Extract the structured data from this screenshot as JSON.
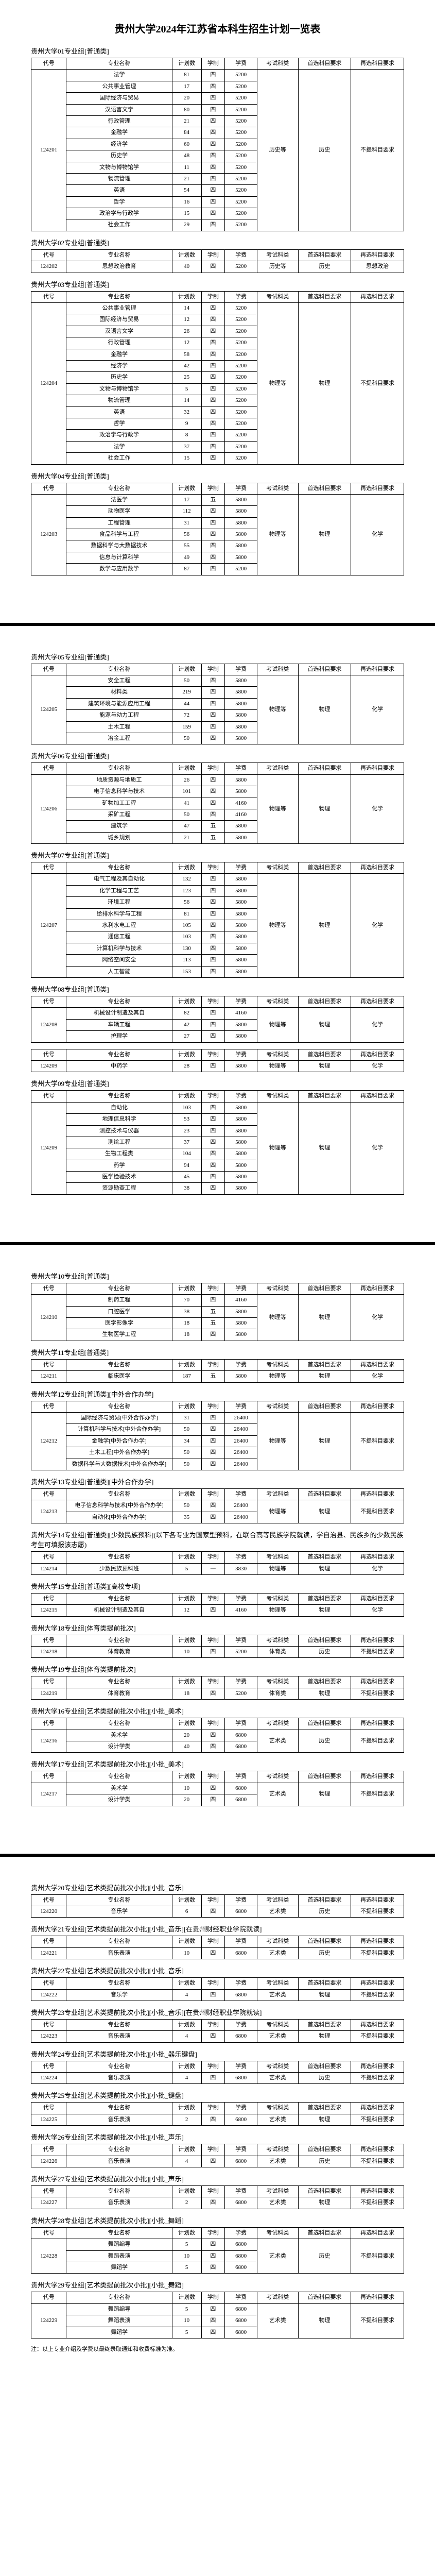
{
  "title": "贵州大学2024年江苏省本科生招生计划一览表",
  "th": {
    "code": "代号",
    "name": "专业名称",
    "plan": "计划数",
    "year": "学制",
    "fee": "学费",
    "cat": "考试科类",
    "req1": "首选科目要求",
    "req2": "再选科目要求"
  },
  "groups": [
    {
      "header": "贵州大学01专业组[普通类]",
      "codeRowspan": 14,
      "code": "124201",
      "noteCol": "",
      "rows": [
        {
          "name": "法学",
          "plan": "81",
          "year": "四",
          "fee": "5200"
        },
        {
          "name": "公共事业管理",
          "plan": "17",
          "year": "四",
          "fee": "5200"
        },
        {
          "name": "国际经济与贸易",
          "plan": "20",
          "year": "四",
          "fee": "5200"
        },
        {
          "name": "汉语言文学",
          "plan": "80",
          "year": "四",
          "fee": "5200"
        },
        {
          "name": "行政管理",
          "plan": "21",
          "year": "四",
          "fee": "5200"
        },
        {
          "name": "金融学",
          "plan": "84",
          "year": "四",
          "fee": "5200"
        },
        {
          "name": "经济学",
          "plan": "60",
          "year": "四",
          "fee": "5200"
        },
        {
          "name": "历史学",
          "plan": "48",
          "year": "四",
          "fee": "5200"
        },
        {
          "name": "文物与博物馆学",
          "plan": "11",
          "year": "四",
          "fee": "5200"
        },
        {
          "name": "物流管理",
          "plan": "21",
          "year": "四",
          "fee": "5200"
        },
        {
          "name": "英语",
          "plan": "54",
          "year": "四",
          "fee": "5200"
        },
        {
          "name": "哲学",
          "plan": "16",
          "year": "四",
          "fee": "5200"
        },
        {
          "name": "政治学与行政学",
          "plan": "15",
          "year": "四",
          "fee": "5200"
        },
        {
          "name": "社会工作",
          "plan": "29",
          "year": "四",
          "fee": "5200"
        }
      ],
      "cat": "历史等",
      "req1": "历史",
      "req2": "不提科目要求"
    },
    {
      "header": "贵州大学02专业组[普通类]",
      "codeRowspan": 1,
      "code": "124202",
      "rows": [
        {
          "name": "思想政治教育",
          "plan": "40",
          "year": "四",
          "fee": "5200"
        }
      ],
      "cat": "历史等",
      "req1": "历史",
      "req2": "思想政治"
    },
    {
      "header": "贵州大学03专业组[普通类]",
      "codeRowspan": 14,
      "code": "124204",
      "rows": [
        {
          "name": "公共事业管理",
          "plan": "14",
          "year": "四",
          "fee": "5200"
        },
        {
          "name": "国际经济与贸易",
          "plan": "12",
          "year": "四",
          "fee": "5200"
        },
        {
          "name": "汉语言文学",
          "plan": "26",
          "year": "四",
          "fee": "5200"
        },
        {
          "name": "行政管理",
          "plan": "12",
          "year": "四",
          "fee": "5200"
        },
        {
          "name": "金融学",
          "plan": "58",
          "year": "四",
          "fee": "5200"
        },
        {
          "name": "经济学",
          "plan": "42",
          "year": "四",
          "fee": "5200"
        },
        {
          "name": "历史学",
          "plan": "25",
          "year": "四",
          "fee": "5200"
        },
        {
          "name": "文物与博物馆学",
          "plan": "5",
          "year": "四",
          "fee": "5200"
        },
        {
          "name": "物流管理",
          "plan": "14",
          "year": "四",
          "fee": "5200"
        },
        {
          "name": "英语",
          "plan": "32",
          "year": "四",
          "fee": "5200"
        },
        {
          "name": "哲学",
          "plan": "9",
          "year": "四",
          "fee": "5200"
        },
        {
          "name": "政治学与行政学",
          "plan": "8",
          "year": "四",
          "fee": "5200"
        },
        {
          "name": "法学",
          "plan": "37",
          "year": "四",
          "fee": "5200"
        },
        {
          "name": "社会工作",
          "plan": "15",
          "year": "四",
          "fee": "5200"
        }
      ],
      "cat": "物理等",
      "req1": "物理",
      "req2": "不提科目要求"
    },
    {
      "header": "贵州大学04专业组[普通类]",
      "codeRowspan": 7,
      "code": "124203",
      "rows": [
        {
          "name": "法医学",
          "plan": "17",
          "year": "五",
          "fee": "5800"
        },
        {
          "name": "动物医学",
          "plan": "112",
          "year": "四",
          "fee": "5800"
        },
        {
          "name": "工程管理",
          "plan": "31",
          "year": "四",
          "fee": "5800"
        },
        {
          "name": "食品科学与工程",
          "plan": "56",
          "year": "四",
          "fee": "5800"
        },
        {
          "name": "数据科学与大数据技术",
          "plan": "55",
          "year": "四",
          "fee": "5800"
        },
        {
          "name": "信息与计算科学",
          "plan": "49",
          "year": "四",
          "fee": "5800"
        },
        {
          "name": "数学与应用数学",
          "plan": "87",
          "year": "四",
          "fee": "5200"
        }
      ],
      "cat": "物理等",
      "req1": "物理",
      "req2": "化学"
    },
    {
      "pageBreak": true,
      "header": "贵州大学05专业组[普通类]",
      "codeRowspan": 6,
      "code": "124205",
      "rows": [
        {
          "name": "安全工程",
          "plan": "50",
          "year": "四",
          "fee": "5800"
        },
        {
          "name": "材料类",
          "plan": "219",
          "year": "四",
          "fee": "5800"
        },
        {
          "name": "建筑环境与能源应用工程",
          "plan": "44",
          "year": "四",
          "fee": "5800"
        },
        {
          "name": "能源与动力工程",
          "plan": "72",
          "year": "四",
          "fee": "5800"
        },
        {
          "name": "土木工程",
          "plan": "159",
          "year": "四",
          "fee": "5800"
        },
        {
          "name": "冶金工程",
          "plan": "50",
          "year": "四",
          "fee": "5800"
        }
      ],
      "cat": "物理等",
      "req1": "物理",
      "req2": "化学"
    },
    {
      "header": "贵州大学06专业组[普通类]",
      "codeRowspan": 6,
      "code": "124206",
      "rows": [
        {
          "name": "地质资源与地质工",
          "plan": "26",
          "year": "四",
          "fee": "5800"
        },
        {
          "name": "电子信息科学与技术",
          "plan": "101",
          "year": "四",
          "fee": "5800"
        },
        {
          "name": "矿物加工工程",
          "plan": "41",
          "year": "四",
          "fee": "4160"
        },
        {
          "name": "采矿工程",
          "plan": "50",
          "year": "四",
          "fee": "4160"
        },
        {
          "name": "建筑学",
          "plan": "47",
          "year": "五",
          "fee": "5800"
        },
        {
          "name": "城乡规划",
          "plan": "21",
          "year": "五",
          "fee": "5800"
        }
      ],
      "cat": "物理等",
      "req1": "物理",
      "req2": "化学"
    },
    {
      "header": "贵州大学07专业组[普通类]",
      "codeRowspan": 9,
      "code": "124207",
      "rows": [
        {
          "name": "电气工程及其自动化",
          "plan": "132",
          "year": "四",
          "fee": "5800"
        },
        {
          "name": "化学工程与工艺",
          "plan": "123",
          "year": "四",
          "fee": "5800"
        },
        {
          "name": "环境工程",
          "plan": "56",
          "year": "四",
          "fee": "5800"
        },
        {
          "name": "给排水科学与工程",
          "plan": "81",
          "year": "四",
          "fee": "5800"
        },
        {
          "name": "水利水电工程",
          "plan": "105",
          "year": "四",
          "fee": "5800"
        },
        {
          "name": "通信工程",
          "plan": "103",
          "year": "四",
          "fee": "5800"
        },
        {
          "name": "计算机科学与技术",
          "plan": "130",
          "year": "四",
          "fee": "5800"
        },
        {
          "name": "网络空间安全",
          "plan": "113",
          "year": "四",
          "fee": "5800"
        },
        {
          "name": "人工智能",
          "plan": "153",
          "year": "四",
          "fee": "5800"
        }
      ],
      "cat": "物理等",
      "req1": "物理",
      "req2": "化学"
    },
    {
      "header": "贵州大学08专业组[普通类]",
      "codeRowspan": 3,
      "code": "124208",
      "rows": [
        {
          "name": "机械设计制造及其自",
          "plan": "82",
          "year": "四",
          "fee": "4160"
        },
        {
          "name": "车辆工程",
          "plan": "42",
          "year": "四",
          "fee": "5800"
        },
        {
          "name": "护理学",
          "plan": "27",
          "year": "四",
          "fee": "5800"
        }
      ],
      "cat": "物理等",
      "req1": "物理",
      "req2": "化学"
    },
    {
      "header": "",
      "code": "124209",
      "codeRowspan": 1,
      "rows": [
        {
          "name": "中药学",
          "plan": "28",
          "year": "四",
          "fee": "5800"
        }
      ],
      "cat": "物理等",
      "req1": "物理",
      "req2": "化学"
    },
    {
      "header": "贵州大学09专业组[普通类]",
      "codeRowspan": 8,
      "code": "124209",
      "rows": [
        {
          "name": "自动化",
          "plan": "103",
          "year": "四",
          "fee": "5800"
        },
        {
          "name": "地理信息科学",
          "plan": "53",
          "year": "四",
          "fee": "5800"
        },
        {
          "name": "测控技术与仪器",
          "plan": "23",
          "year": "四",
          "fee": "5800"
        },
        {
          "name": "测绘工程",
          "plan": "37",
          "year": "四",
          "fee": "5800"
        },
        {
          "name": "生物工程类",
          "plan": "104",
          "year": "四",
          "fee": "5800"
        },
        {
          "name": "药学",
          "plan": "94",
          "year": "四",
          "fee": "5800"
        },
        {
          "name": "医学检验技术",
          "plan": "45",
          "year": "四",
          "fee": "5800"
        },
        {
          "name": "资源勘查工程",
          "plan": "38",
          "year": "四",
          "fee": "5800"
        }
      ],
      "cat": "物理等",
      "req1": "物理",
      "req2": "化学"
    },
    {
      "pageBreak": true,
      "header": "贵州大学10专业组[普通类]",
      "codeRowspan": 4,
      "code": "124210",
      "rows": [
        {
          "name": "制药工程",
          "plan": "70",
          "year": "四",
          "fee": "4160"
        },
        {
          "name": "口腔医学",
          "plan": "38",
          "year": "五",
          "fee": "5800"
        },
        {
          "name": "医学影像学",
          "plan": "18",
          "year": "五",
          "fee": "5800"
        },
        {
          "name": "生物医学工程",
          "plan": "18",
          "year": "四",
          "fee": "5800"
        }
      ],
      "cat": "物理等",
      "req1": "物理",
      "req2": "化学"
    },
    {
      "header": "贵州大学11专业组[普通类]",
      "codeRowspan": 1,
      "code": "124211",
      "rows": [
        {
          "name": "临床医学",
          "plan": "187",
          "year": "五",
          "fee": "5800"
        }
      ],
      "cat": "物理等",
      "req1": "物理",
      "req2": "化学"
    },
    {
      "header": "贵州大学12专业组[普通类][中外合作办学]",
      "codeRowspan": 5,
      "code": "124212",
      "rows": [
        {
          "name": "国际经济与贸易[中外合作办学]",
          "plan": "31",
          "year": "四",
          "fee": "26400"
        },
        {
          "name": "计算机科学与技术[中外合作办学]",
          "plan": "50",
          "year": "四",
          "fee": "26400"
        },
        {
          "name": "金融学[中外合作办学]",
          "plan": "34",
          "year": "四",
          "fee": "26400"
        },
        {
          "name": "土木工程[中外合作办学]",
          "plan": "50",
          "year": "四",
          "fee": "26400"
        },
        {
          "name": "数据科学与大数据技术[中外合作办学]",
          "plan": "50",
          "year": "四",
          "fee": "26400"
        }
      ],
      "cat": "物理等",
      "req1": "物理",
      "req2": "不提科目要求"
    },
    {
      "header": "贵州大学13专业组[普通类][中外合作办学]",
      "codeRowspan": 2,
      "code": "124213",
      "rows": [
        {
          "name": "电子信息科学与技术[中外合作办学]",
          "plan": "50",
          "year": "四",
          "fee": "26400"
        },
        {
          "name": "自动化[中外合作办学]",
          "plan": "35",
          "year": "四",
          "fee": "26400"
        }
      ],
      "cat": "物理等",
      "req1": "物理",
      "req2": "不提科目要求"
    },
    {
      "header": "贵州大学14专业组[普通类][少数民族预科](以下各专业为国家型预科，在联合高等民族学院就读，学自治县、民族乡的少数民族考生可填报该志愿)",
      "codeRowspan": 1,
      "code": "124214",
      "rows": [
        {
          "name": "少数民族预科班",
          "plan": "5",
          "year": "一",
          "fee": "3830"
        }
      ],
      "cat": "物理等",
      "req1": "物理",
      "req2": "化学"
    },
    {
      "header": "贵州大学15专业组[普通类][高校专项]",
      "codeRowspan": 1,
      "code": "124215",
      "rows": [
        {
          "name": "机械设计制造及其自",
          "plan": "12",
          "year": "四",
          "fee": "4160"
        }
      ],
      "cat": "物理等",
      "req1": "物理",
      "req2": "化学"
    },
    {
      "header": "贵州大学18专业组[体育类提前批次]",
      "codeRowspan": 1,
      "code": "124218",
      "rows": [
        {
          "name": "体育教育",
          "plan": "10",
          "year": "四",
          "fee": "5200"
        }
      ],
      "cat": "体育类",
      "req1": "历史",
      "req2": "不提科目要求"
    },
    {
      "header": "贵州大学19专业组[体育类提前批次]",
      "codeRowspan": 1,
      "code": "124219",
      "rows": [
        {
          "name": "体育教育",
          "plan": "18",
          "year": "四",
          "fee": "5200"
        }
      ],
      "cat": "体育类",
      "req1": "物理",
      "req2": "不提科目要求"
    },
    {
      "header": "贵州大学16专业组[艺术类提前批次小批][小批_美术]",
      "codeRowspan": 2,
      "code": "124216",
      "rows": [
        {
          "name": "美术学",
          "plan": "20",
          "year": "四",
          "fee": "6800"
        },
        {
          "name": "设计学类",
          "plan": "40",
          "year": "四",
          "fee": "6800"
        }
      ],
      "cat": "艺术类",
      "req1": "历史",
      "req2": "不提科目要求"
    },
    {
      "header": "贵州大学17专业组[艺术类提前批次小批][小批_美术]",
      "codeRowspan": 2,
      "code": "124217",
      "rows": [
        {
          "name": "美术学",
          "plan": "10",
          "year": "四",
          "fee": "6800"
        },
        {
          "name": "设计学类",
          "plan": "20",
          "year": "四",
          "fee": "6800"
        }
      ],
      "cat": "艺术类",
      "req1": "物理",
      "req2": "不提科目要求"
    },
    {
      "pageBreak": true,
      "header": "贵州大学20专业组[艺术类提前批次小批][小批_音乐]",
      "codeRowspan": 1,
      "code": "124220",
      "rows": [
        {
          "name": "音乐学",
          "plan": "6",
          "year": "四",
          "fee": "6800"
        }
      ],
      "cat": "艺术类",
      "req1": "历史",
      "req2": "不提科目要求"
    },
    {
      "header": "贵州大学21专业组[艺术类提前批次小批][小批_音乐][在贵州财经职业学院就读]",
      "codeRowspan": 1,
      "code": "124221",
      "rows": [
        {
          "name": "音乐表演",
          "plan": "10",
          "year": "四",
          "fee": "6800"
        }
      ],
      "cat": "艺术类",
      "req1": "历史",
      "req2": "不提科目要求"
    },
    {
      "header": "贵州大学22专业组[艺术类提前批次小批][小批_音乐]",
      "codeRowspan": 1,
      "code": "124222",
      "rows": [
        {
          "name": "音乐学",
          "plan": "4",
          "year": "四",
          "fee": "6800"
        }
      ],
      "cat": "艺术类",
      "req1": "物理",
      "req2": "不提科目要求"
    },
    {
      "header": "贵州大学23专业组[艺术类提前批次小批][小批_音乐][在贵州财经职业学院就读]",
      "codeRowspan": 1,
      "code": "124223",
      "rows": [
        {
          "name": "音乐表演",
          "plan": "4",
          "year": "四",
          "fee": "6800"
        }
      ],
      "cat": "艺术类",
      "req1": "物理",
      "req2": "不提科目要求"
    },
    {
      "header": "贵州大学24专业组[艺术类提前批次小批][小批_器乐键盘]",
      "codeRowspan": 1,
      "code": "124224",
      "rows": [
        {
          "name": "音乐表演",
          "plan": "4",
          "year": "四",
          "fee": "6800"
        }
      ],
      "cat": "艺术类",
      "req1": "历史",
      "req2": "不提科目要求"
    },
    {
      "header": "贵州大学25专业组[艺术类提前批次小批][小批_键盘]",
      "codeRowspan": 1,
      "code": "124225",
      "rows": [
        {
          "name": "音乐表演",
          "plan": "2",
          "year": "四",
          "fee": "6800"
        }
      ],
      "cat": "艺术类",
      "req1": "物理",
      "req2": "不提科目要求"
    },
    {
      "header": "贵州大学26专业组[艺术类提前批次小批][小批_声乐]",
      "codeRowspan": 1,
      "code": "124226",
      "rows": [
        {
          "name": "音乐表演",
          "plan": "4",
          "year": "四",
          "fee": "6800"
        }
      ],
      "cat": "艺术类",
      "req1": "历史",
      "req2": "不提科目要求"
    },
    {
      "header": "贵州大学27专业组[艺术类提前批次小批][小批_声乐]",
      "codeRowspan": 1,
      "code": "124227",
      "rows": [
        {
          "name": "音乐表演",
          "plan": "2",
          "year": "四",
          "fee": "6800"
        }
      ],
      "cat": "艺术类",
      "req1": "物理",
      "req2": "不提科目要求"
    },
    {
      "header": "贵州大学28专业组[艺术类提前批次小批][小批_舞蹈]",
      "codeRowspan": 3,
      "code": "124228",
      "rows": [
        {
          "name": "舞蹈编导",
          "plan": "5",
          "year": "四",
          "fee": "6800"
        },
        {
          "name": "舞蹈表演",
          "plan": "10",
          "year": "四",
          "fee": "6800"
        },
        {
          "name": "舞蹈学",
          "plan": "5",
          "year": "四",
          "fee": "6800"
        }
      ],
      "cat": "艺术类",
      "req1": "历史",
      "req2": "不提科目要求"
    },
    {
      "header": "贵州大学29专业组[艺术类提前批次小批][小批_舞蹈]",
      "codeRowspan": 3,
      "code": "124229",
      "rows": [
        {
          "name": "舞蹈编导",
          "plan": "5",
          "year": "四",
          "fee": "6800"
        },
        {
          "name": "舞蹈表演",
          "plan": "10",
          "year": "四",
          "fee": "6800"
        },
        {
          "name": "舞蹈学",
          "plan": "5",
          "year": "四",
          "fee": "6800"
        }
      ],
      "cat": "艺术类",
      "req1": "物理",
      "req2": "不提科目要求"
    }
  ],
  "footnote": "注：以上专业介绍及学费以最终录取通知和收费标准为准。"
}
